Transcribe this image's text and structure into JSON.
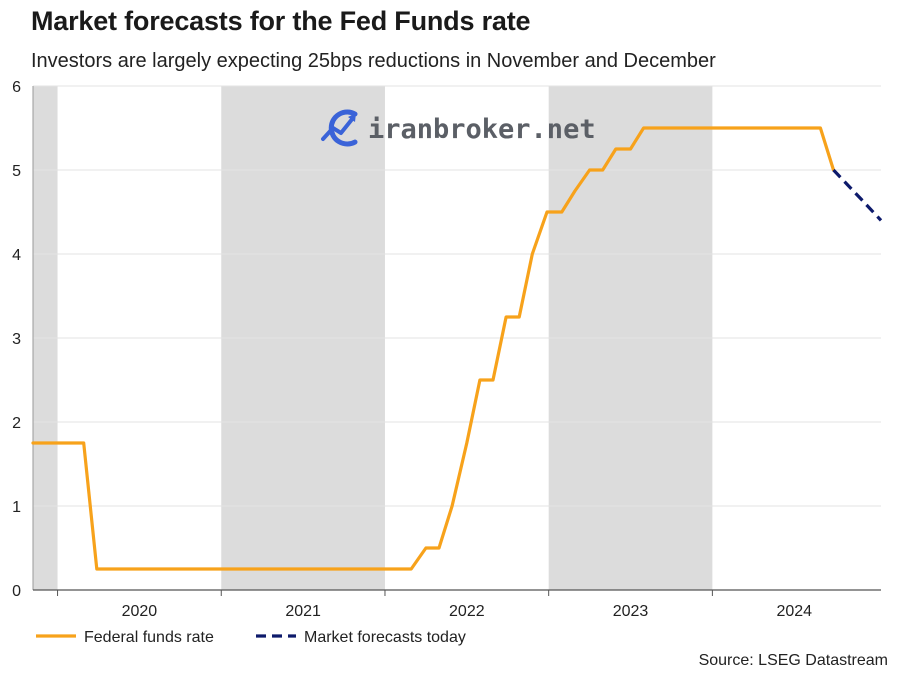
{
  "chart_data": {
    "type": "line",
    "title": "Market forecasts for the Fed Funds rate",
    "subtitle": "Investors are largely expecting 25bps reductions in November and December",
    "source": "Source: LSEG Datastream",
    "xlabel": "",
    "ylabel": "",
    "xlim": [
      2019.85,
      2025.03
    ],
    "ylim": [
      0,
      6
    ],
    "y_ticks": [
      "0",
      "1",
      "2",
      "3",
      "4",
      "5",
      "6"
    ],
    "x_year_labels": [
      {
        "label": "2020",
        "x": 2020.5
      },
      {
        "label": "2021",
        "x": 2021.5
      },
      {
        "label": "2022",
        "x": 2022.5
      },
      {
        "label": "2023",
        "x": 2023.5
      },
      {
        "label": "2024",
        "x": 2024.5
      }
    ],
    "year_boundaries": [
      2020,
      2021,
      2022,
      2023,
      2024
    ],
    "shaded_periods": [
      [
        2019.85,
        2020.0
      ],
      [
        2021.0,
        2022.0
      ],
      [
        2023.0,
        2024.0
      ]
    ],
    "grid": true,
    "legend_position": "bottom-left",
    "series": [
      {
        "name": "Federal funds rate",
        "color": "#f7a21b",
        "style": "solid",
        "points": [
          [
            2019.85,
            1.75
          ],
          [
            2020.16,
            1.75
          ],
          [
            2020.24,
            0.25
          ],
          [
            2022.16,
            0.25
          ],
          [
            2022.25,
            0.5
          ],
          [
            2022.33,
            0.5
          ],
          [
            2022.41,
            1.0
          ],
          [
            2022.5,
            1.75
          ],
          [
            2022.58,
            2.5
          ],
          [
            2022.66,
            2.5
          ],
          [
            2022.74,
            3.25
          ],
          [
            2022.82,
            3.25
          ],
          [
            2022.9,
            4.0
          ],
          [
            2022.99,
            4.5
          ],
          [
            2023.08,
            4.5
          ],
          [
            2023.16,
            4.75
          ],
          [
            2023.25,
            5.0
          ],
          [
            2023.33,
            5.0
          ],
          [
            2023.41,
            5.25
          ],
          [
            2023.5,
            5.25
          ],
          [
            2023.58,
            5.5
          ],
          [
            2024.66,
            5.5
          ],
          [
            2024.74,
            5.0
          ]
        ]
      },
      {
        "name": "Market forecasts today",
        "color": "#0d1a6b",
        "style": "dashed",
        "points": [
          [
            2024.74,
            5.0
          ],
          [
            2024.91,
            4.65
          ],
          [
            2025.03,
            4.4
          ]
        ]
      }
    ]
  },
  "watermark": {
    "text": "iranbroker.net",
    "icon": "chart-growth-icon"
  }
}
